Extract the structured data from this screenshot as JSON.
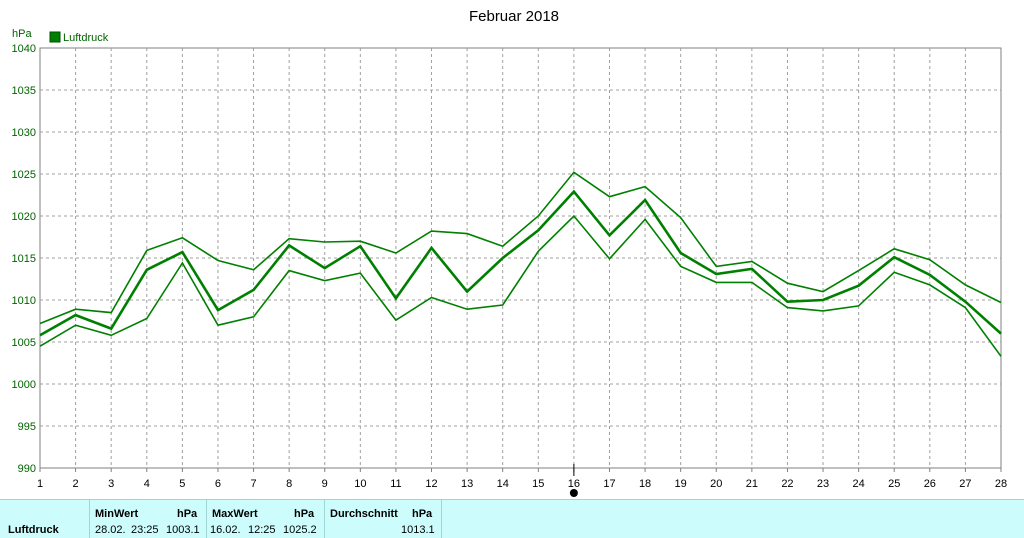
{
  "chart_data": {
    "type": "line",
    "title": "Februar 2018",
    "ylabel": "hPa",
    "ylim": [
      990,
      1040
    ],
    "yticks": [
      990,
      995,
      1000,
      1005,
      1010,
      1015,
      1020,
      1025,
      1030,
      1035,
      1040
    ],
    "x": [
      1,
      2,
      3,
      4,
      5,
      6,
      7,
      8,
      9,
      10,
      11,
      12,
      13,
      14,
      15,
      16,
      17,
      18,
      19,
      20,
      21,
      22,
      23,
      24,
      25,
      26,
      27,
      28
    ],
    "grid": true,
    "legend_position": "top-left",
    "legend": "Luftdruck",
    "marked_day": 16,
    "series": [
      {
        "role": "max",
        "color": "#008000",
        "values": [
          1007.2,
          1008.9,
          1008.5,
          1015.9,
          1017.4,
          1014.7,
          1013.6,
          1017.3,
          1016.9,
          1017.0,
          1015.6,
          1018.2,
          1017.9,
          1016.4,
          1020.0,
          1025.2,
          1022.3,
          1023.5,
          1019.8,
          1014.0,
          1014.6,
          1012.0,
          1011.0,
          1013.5,
          1016.1,
          1014.8,
          1011.8,
          1009.7
        ]
      },
      {
        "role": "avg",
        "color": "#008000",
        "values": [
          1005.8,
          1008.2,
          1006.6,
          1013.6,
          1015.7,
          1008.8,
          1011.2,
          1016.5,
          1013.8,
          1016.4,
          1010.2,
          1016.2,
          1011.0,
          1015.0,
          1018.3,
          1022.9,
          1017.7,
          1021.9,
          1015.6,
          1013.1,
          1013.7,
          1009.8,
          1010.0,
          1011.7,
          1015.1,
          1013.0,
          1009.8,
          1006.0
        ]
      },
      {
        "role": "min",
        "color": "#008000",
        "values": [
          1004.5,
          1007.0,
          1005.8,
          1007.8,
          1014.4,
          1007.0,
          1008.0,
          1013.5,
          1012.3,
          1013.2,
          1007.6,
          1010.3,
          1008.9,
          1009.4,
          1015.8,
          1020.0,
          1014.9,
          1019.6,
          1014.0,
          1012.1,
          1012.1,
          1009.1,
          1008.7,
          1009.3,
          1013.3,
          1011.8,
          1009.1,
          1003.3
        ]
      }
    ]
  },
  "stats": {
    "row_label": "Luftdruck",
    "min": {
      "header": "MinWert",
      "unit": "hPa",
      "date": "28.02.",
      "time": "23:25",
      "value": "1003.1"
    },
    "max": {
      "header": "MaxWert",
      "unit": "hPa",
      "date": "16.02.",
      "time": "12:25",
      "value": "1025.2"
    },
    "avg": {
      "header": "Durchschnitt",
      "unit": "hPa",
      "value": "1013.1"
    }
  }
}
